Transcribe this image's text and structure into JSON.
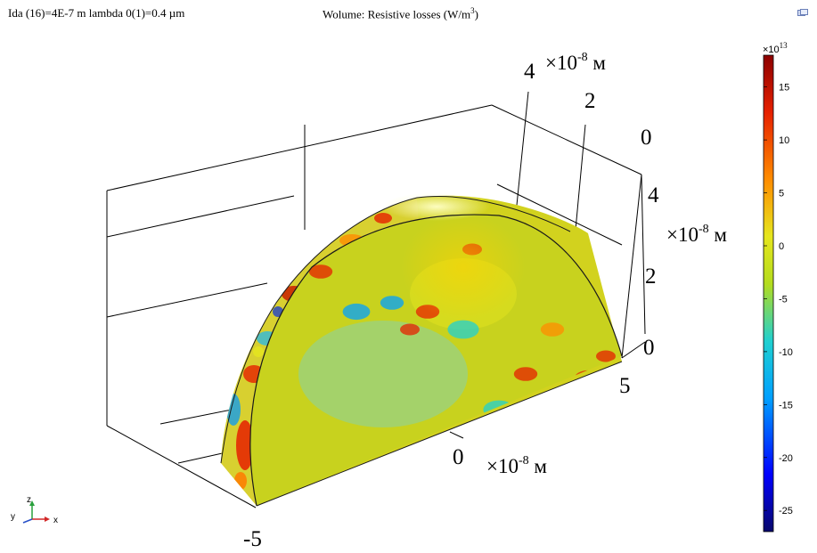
{
  "header": {
    "left_text": "Ida (16)=4E-7 m lambda 0(1)=0.4 µm",
    "right_text_prefix": "Wolume: Resistive losses (W/m",
    "right_text_sup": "3",
    "right_text_suffix": ")"
  },
  "icons": {
    "corner": "window-restore-icon",
    "triad": "axis-triad-icon"
  },
  "chart_data": {
    "type": "heatmap",
    "title": "Wolume: Resistive losses (W/m3)",
    "subtitle": "Ida (16)=4E-7 m lambda 0(1)=0.4 µm",
    "geometry": "half-spherical-shell-3d",
    "axes": {
      "y_axis": {
        "ticks": [
          "4",
          "2",
          "0"
        ],
        "unit": "×10-8 м",
        "unit_base": "×10",
        "unit_exp": "-8",
        "unit_m": " м",
        "range": [
          0,
          4
        ]
      },
      "z_axis": {
        "ticks": [
          "4",
          "2",
          "0"
        ],
        "unit": "×10-8 м",
        "unit_base": "×10",
        "unit_exp": "-8",
        "unit_m": " м",
        "range": [
          0,
          4
        ]
      },
      "x_axis": {
        "ticks": [
          "5",
          "0",
          "-5"
        ],
        "unit": "×10-8 м",
        "unit_base": "×10",
        "unit_exp": "-8",
        "unit_m": " м",
        "range": [
          -5,
          5
        ]
      }
    },
    "colorbar": {
      "exponent_label": "×10",
      "exponent_sup": "13",
      "ticks": [
        "15",
        "10",
        "5",
        "0",
        "-5",
        "-10",
        "-15",
        "-20",
        "-25"
      ],
      "range": [
        -27,
        18
      ],
      "colors": [
        "#08086b",
        "#0000ff",
        "#00a0ff",
        "#20d0d0",
        "#b4dc1e",
        "#e6e61e",
        "#ff8c00",
        "#e62000",
        "#8c0000"
      ]
    },
    "triad": {
      "labels": [
        "y",
        "z",
        "x"
      ],
      "colors": {
        "x": "#d22828",
        "y": "#2850c8",
        "z": "#28a03c"
      }
    },
    "blobs": [
      {
        "cx": 160,
        "cy": 45,
        "r": 7,
        "v": 13
      },
      {
        "cx": -20,
        "cy": -30,
        "r": 6,
        "v": 10
      },
      {
        "cx": 20,
        "cy": -10,
        "r": 8,
        "v": -12
      },
      {
        "cx": -40,
        "cy": -10,
        "r": 5,
        "v": 12
      },
      {
        "cx": 90,
        "cy": 40,
        "r": 6,
        "v": 11
      },
      {
        "cx": -180,
        "cy": -80,
        "r": 7,
        "v": -10
      },
      {
        "cx": 120,
        "cy": -10,
        "r": 6,
        "v": 8
      },
      {
        "cx": -210,
        "cy": -40,
        "r": 5,
        "v": 13
      },
      {
        "cx": 60,
        "cy": 80,
        "r": 8,
        "v": -8
      },
      {
        "cx": -60,
        "cy": -40,
        "r": 6,
        "v": -14
      },
      {
        "cx": 30,
        "cy": -100,
        "r": 5,
        "v": 12
      },
      {
        "cx": -240,
        "cy": -20,
        "r": 5,
        "v": -10
      },
      {
        "cx": 180,
        "cy": 20,
        "r": 5,
        "v": 13
      },
      {
        "cx": -140,
        "cy": -75,
        "r": 6,
        "v": 12
      },
      {
        "cx": -100,
        "cy": -30,
        "r": 7,
        "v": -13
      }
    ]
  }
}
